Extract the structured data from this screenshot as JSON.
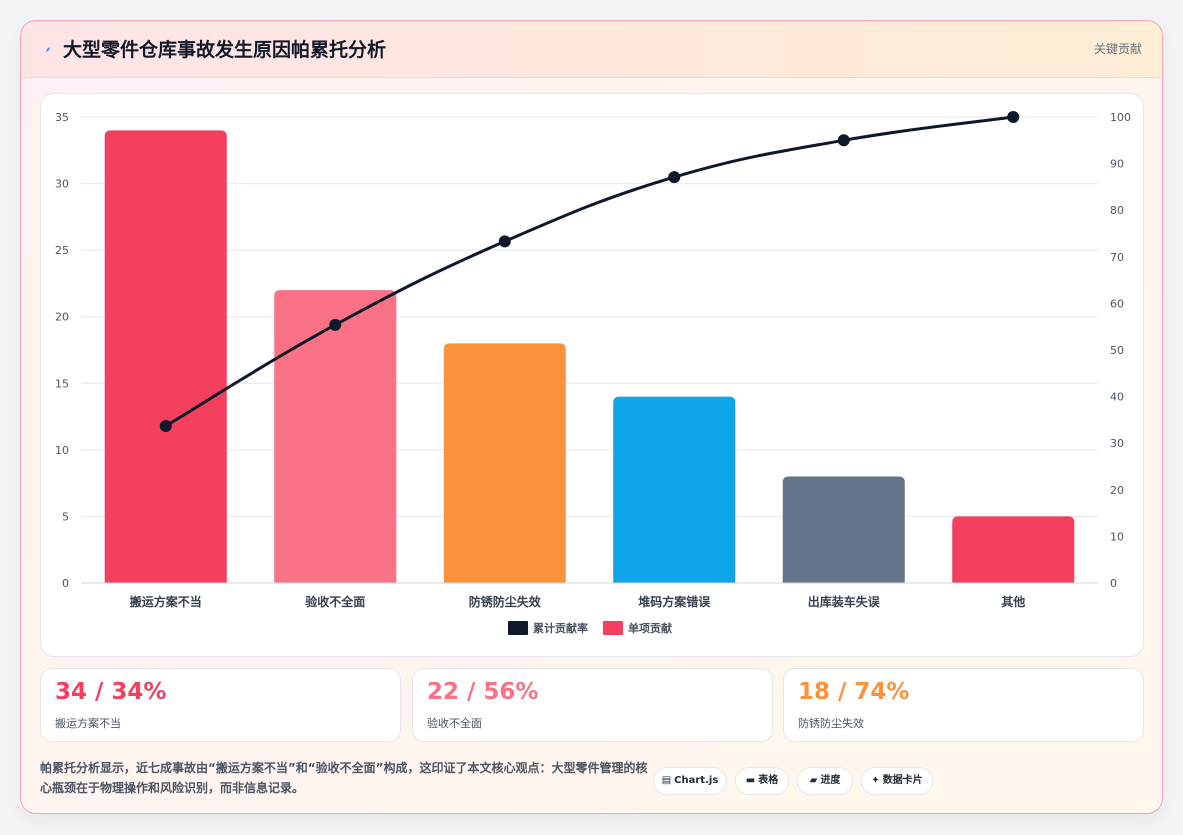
{
  "card": {
    "icon": "lightning-icon",
    "title": "大型零件仓库事故发生原因帕累托分析",
    "tag": "关键贡献"
  },
  "chart_data": {
    "type": "bar",
    "categories": [
      "搬运方案不当",
      "验收不全面",
      "防锈防尘失效",
      "堆码方案错误",
      "出库装车失误",
      "其他"
    ],
    "series": [
      {
        "name": "单项贡献",
        "type": "bar",
        "axis": "left",
        "values": [
          34,
          22,
          18,
          14,
          8,
          5
        ]
      },
      {
        "name": "累计贡献率",
        "type": "line",
        "axis": "right",
        "values": [
          33.7,
          55.4,
          73.3,
          87.1,
          95.0,
          100
        ]
      }
    ],
    "bar_colors": [
      "#f43f5e",
      "#fb7185",
      "#fb923c",
      "#0ea5e9",
      "#64748b",
      "#f43f5e"
    ],
    "line_color": "#0f172a",
    "legend_colors": [
      "#0f172a",
      "#f43f5e"
    ],
    "ylim": [
      0,
      35
    ],
    "yticks": [
      0,
      5,
      10,
      15,
      20,
      25,
      30,
      35
    ],
    "y2lim": [
      0,
      100
    ],
    "y2ticks": [
      0,
      10,
      20,
      30,
      40,
      50,
      60,
      70,
      80,
      90,
      100
    ],
    "grid": true,
    "legend": "bottom-center",
    "legend_entries": [
      "累计贡献率",
      "单项贡献"
    ],
    "title": "",
    "xlabel": "",
    "ylabel": ""
  },
  "stats": [
    {
      "value": "34 / 34%",
      "label": "搬运方案不当",
      "color": "#f43f5e"
    },
    {
      "value": "22 / 56%",
      "label": "验收不全面",
      "color": "#fb7185"
    },
    {
      "value": "18 / 74%",
      "label": "防锈防尘失效",
      "color": "#fb923c"
    }
  ],
  "summary": "帕累托分析显示，近七成事故由“搬运方案不当”和“验收不全面”构成，这印证了本文核心观点：大型零件管理的核心瓶颈在于物理操作和风险识别，而非信息记录。",
  "chips": [
    {
      "icon": "chart-icon",
      "glyph": "▤",
      "label": "Chart.js"
    },
    {
      "icon": "table-icon",
      "glyph": "▬",
      "label": "表格"
    },
    {
      "icon": "progress-icon",
      "glyph": "▰",
      "label": "进度"
    },
    {
      "icon": "sparkle-icon",
      "glyph": "✦",
      "label": "数据卡片"
    }
  ]
}
